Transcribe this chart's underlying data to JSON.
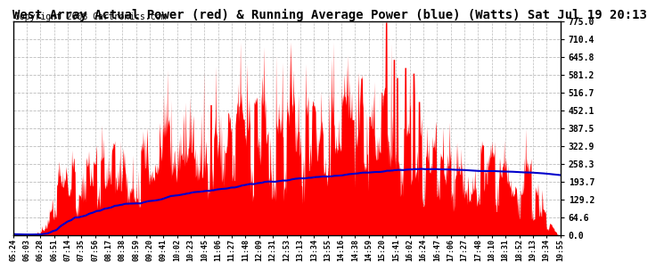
{
  "title": "West Array Actual Power (red) & Running Average Power (blue) (Watts) Sat Jul 19 20:13",
  "copyright": "Copyright 2008 Cartronics.com",
  "yticks": [
    0.0,
    64.6,
    129.2,
    193.7,
    258.3,
    322.9,
    387.5,
    452.1,
    516.7,
    581.2,
    645.8,
    710.4,
    775.0
  ],
  "ylim": [
    0,
    775.0
  ],
  "xtick_labels": [
    "05:24",
    "06:03",
    "06:28",
    "06:51",
    "07:14",
    "07:35",
    "07:56",
    "08:17",
    "08:38",
    "08:59",
    "09:20",
    "09:41",
    "10:02",
    "10:23",
    "10:45",
    "11:06",
    "11:27",
    "11:48",
    "12:09",
    "12:31",
    "12:53",
    "13:13",
    "13:34",
    "13:55",
    "14:16",
    "14:38",
    "14:59",
    "15:20",
    "15:41",
    "16:02",
    "16:24",
    "16:47",
    "17:06",
    "17:27",
    "17:48",
    "18:10",
    "18:31",
    "18:52",
    "19:13",
    "19:34",
    "19:55"
  ],
  "background_color": "#ffffff",
  "plot_bg_color": "#ffffff",
  "grid_color": "#bbbbbb",
  "red_color": "#ff0000",
  "blue_color": "#0000cc",
  "title_fontsize": 10,
  "copyright_fontsize": 7
}
